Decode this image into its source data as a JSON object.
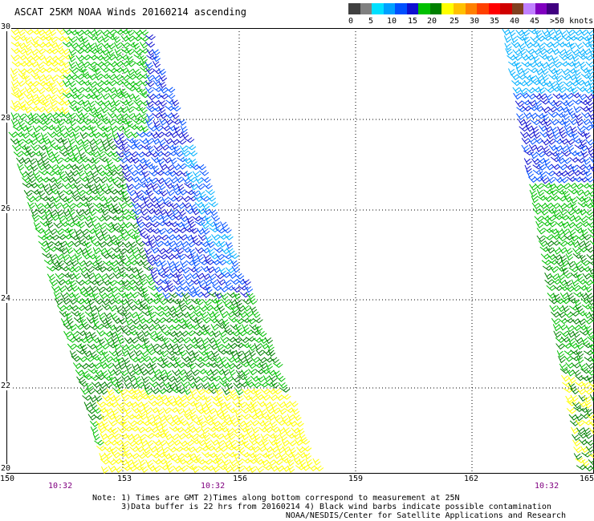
{
  "title": "ASCAT 25KM NOAA Winds 20160214 ascending",
  "legend": {
    "colors": [
      "#404040",
      "#808080",
      "#00e0ff",
      "#00a0ff",
      "#0050ff",
      "#1010d0",
      "#00c000",
      "#008000",
      "#ffff00",
      "#ffc000",
      "#ff8000",
      "#ff4000",
      "#ff0000",
      "#d00000",
      "#804020",
      "#c080ff",
      "#8000c0",
      "#400080"
    ],
    "labels": [
      "0",
      "5",
      "10",
      "15",
      "20",
      "25",
      "30",
      "35",
      "40",
      "45",
      ">50 knots"
    ]
  },
  "map": {
    "lon_labels": [
      "150",
      "153",
      "156",
      "159",
      "162",
      "165"
    ],
    "lat_labels": [
      "30",
      "28",
      "26",
      "24",
      "22",
      "20"
    ],
    "time_labels": [
      "10:32",
      "10:32",
      "10:32"
    ],
    "wind_colors": {
      "light": "#ffff00",
      "green": "#00c000",
      "darkgreen": "#008000",
      "cyan": "#00b0ff",
      "blue": "#0050ff",
      "darkblue": "#1010d0"
    }
  },
  "note": {
    "line1": "Note: 1) Times are GMT 2)Times along bottom correspond to measurement at 25N",
    "line2": "      3)Data buffer is 22 hrs from 20160214 4) Black wind barbs indicate possible contamination",
    "line3": "                                        NOAA/NESDIS/Center for Satellite Applications and Research"
  }
}
